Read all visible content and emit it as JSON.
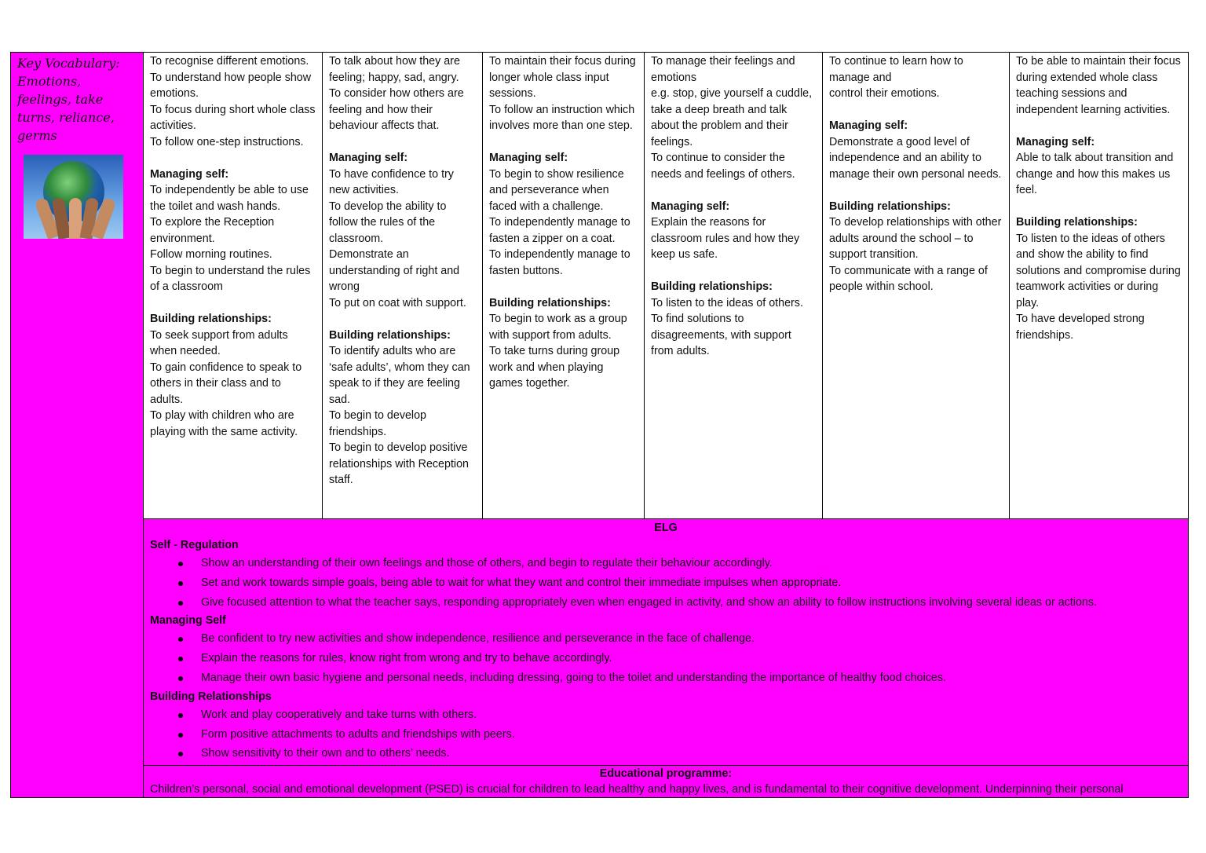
{
  "vocabulary": {
    "lines": [
      "Key Vocabulary:",
      "Emotions,",
      "feelings, take",
      "turns, reliance,",
      "germs"
    ]
  },
  "columns": [
    {
      "blocks": [
        {
          "t": "To recognise different emotions."
        },
        {
          "t": "To understand how people show emotions."
        },
        {
          "t": "To focus during short whole class activities."
        },
        {
          "t": "To follow one-step instructions."
        },
        {
          "gap": true
        },
        {
          "h": "Managing self:"
        },
        {
          "t": "To independently be able to use the toilet and wash hands."
        },
        {
          "t": "To explore the Reception environment."
        },
        {
          "t": "Follow morning routines."
        },
        {
          "t": "To begin to understand the rules of a classroom"
        },
        {
          "gap": true
        },
        {
          "h": "Building relationships:"
        },
        {
          "t": "To seek support from adults when needed."
        },
        {
          "t": "To gain confidence to speak to others in their class and to adults."
        },
        {
          "t": "To play with children who are playing with the same activity."
        }
      ]
    },
    {
      "blocks": [
        {
          "t": "To talk about how they are feeling; happy, sad, angry."
        },
        {
          "t": "To consider how others are feeling and how their behaviour affects that."
        },
        {
          "gap": true
        },
        {
          "h": "Managing self:"
        },
        {
          "t": "To have confidence to try new activities."
        },
        {
          "t": "To develop the ability to follow the rules of the classroom."
        },
        {
          "t": "Demonstrate an understanding of right and wrong"
        },
        {
          "t": "To put on coat with support."
        },
        {
          "gap": true
        },
        {
          "h": "Building relationships:"
        },
        {
          "t": "To identify adults who are ‘safe adults’, whom they can speak to if they are feeling sad."
        },
        {
          "t": "To begin to develop friendships."
        },
        {
          "t": "To begin to develop positive relationships with Reception staff."
        }
      ]
    },
    {
      "blocks": [
        {
          "t": "To maintain their focus during longer whole class input sessions."
        },
        {
          "t": "To follow an instruction which involves more than one step."
        },
        {
          "gap": true
        },
        {
          "h": "Managing self:"
        },
        {
          "t": "To begin to show resilience and perseverance when faced with a challenge."
        },
        {
          "t": "To independently manage to fasten a zipper on a coat."
        },
        {
          "t": "To independently manage to fasten buttons."
        },
        {
          "gap": true
        },
        {
          "h": "Building relationships:"
        },
        {
          "t": "To begin to work as a group with support from adults."
        },
        {
          "t": "To take turns during group work and when playing games together."
        }
      ]
    },
    {
      "blocks": [
        {
          "t": "To manage their feelings and emotions"
        },
        {
          "t": "e.g. stop, give yourself a cuddle, take a deep breath and talk about the problem and their feelings."
        },
        {
          "t": "To continue to consider the needs and feelings of others."
        },
        {
          "gap": true
        },
        {
          "h": "Managing self:"
        },
        {
          "t": "Explain the reasons for classroom rules and how they keep us safe."
        },
        {
          "gap": true
        },
        {
          "h": "Building relationships:"
        },
        {
          "t": "To listen to the ideas of others."
        },
        {
          "t": "To find solutions to disagreements, with support from adults."
        }
      ]
    },
    {
      "blocks": [
        {
          "t": "To continue to learn how to manage and"
        },
        {
          "t": "control their emotions."
        },
        {
          "gap": true
        },
        {
          "h": "Managing self:"
        },
        {
          "t": "Demonstrate a good level of independence and an ability to manage their own personal needs."
        },
        {
          "gap": true
        },
        {
          "h": "Building relationships:"
        },
        {
          "t": "To develop relationships with other adults around the school – to support transition."
        },
        {
          "t": "To communicate with a range of people within school."
        }
      ]
    },
    {
      "blocks": [
        {
          "t": "To be able to maintain their focus during extended whole class teaching sessions and independent learning activities."
        },
        {
          "gap": true
        },
        {
          "h": "Managing self:"
        },
        {
          "t": "Able to talk about transition and change and how this makes us feel."
        },
        {
          "gap": true
        },
        {
          "h": "Building relationships:"
        },
        {
          "t": "To listen to the ideas of others and show the ability to find solutions and compromise during teamwork activities or during play."
        },
        {
          "t": "To have developed strong friendships."
        }
      ]
    }
  ],
  "elg": {
    "title": "ELG",
    "sections": [
      {
        "heading": "Self - Regulation",
        "items": [
          "Show an understanding of their own feelings and those of others, and begin to regulate their behaviour accordingly.",
          "Set and work towards simple goals, being able to wait for what they want and control their immediate impulses when appropriate.",
          "Give focused attention to what the teacher says, responding appropriately even when engaged in activity, and show an ability to follow instructions involving several ideas or actions."
        ]
      },
      {
        "heading": "Managing Self",
        "items": [
          "Be confident to try new activities and show independence, resilience and perseverance in the face of challenge.",
          "Explain the reasons for rules, know right from wrong and try to behave accordingly.",
          "Manage their own basic hygiene and personal needs, including dressing, going to the toilet and understanding the importance of healthy food choices."
        ]
      },
      {
        "heading": "Building Relationships",
        "items": [
          "Work and play cooperatively and take turns with others.",
          "Form positive attachments to adults and friendships with peers.",
          "Show sensitivity to their own and to others’ needs."
        ]
      }
    ]
  },
  "educational_programme": {
    "title": "Educational programme:",
    "text": "Children’s personal, social and emotional development (PSED) is crucial for children to lead healthy and happy lives, and is fundamental to their cognitive development. Underpinning their personal"
  },
  "colors": {
    "background": "#ff00ff",
    "border": "#000000"
  }
}
